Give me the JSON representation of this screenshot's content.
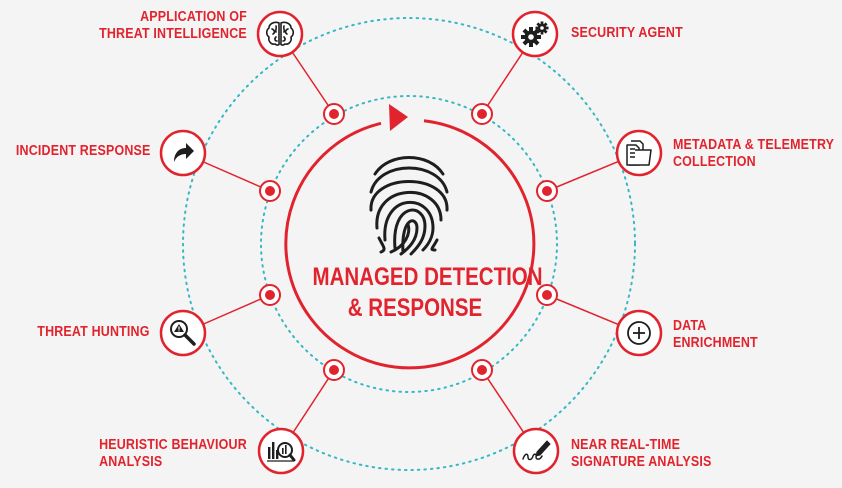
{
  "center": {
    "title_line1": "MANAGED DETECTION",
    "title_line2": "& RESPONSE"
  },
  "nodes": [
    {
      "id": "threat-intelligence",
      "line1": "APPLICATION OF",
      "line2": "THREAT INTELLIGENCE",
      "icon": "brain-icon"
    },
    {
      "id": "security-agent",
      "line1": "SECURITY AGENT",
      "line2": "",
      "icon": "gears-icon"
    },
    {
      "id": "incident-response",
      "line1": "INCIDENT RESPONSE",
      "line2": "",
      "icon": "forward-arrow-icon"
    },
    {
      "id": "metadata-telemetry",
      "line1": "METADATA & TELEMETRY",
      "line2": "COLLECTION",
      "icon": "documents-icon"
    },
    {
      "id": "threat-hunting",
      "line1": "THREAT HUNTING",
      "line2": "",
      "icon": "magnifier-warning-icon"
    },
    {
      "id": "data-enrichment",
      "line1": "DATA",
      "line2": "ENRICHMENT",
      "icon": "plus-circle-icon"
    },
    {
      "id": "heuristic-behaviour",
      "line1": "HEURISTIC BEHAVIOUR",
      "line2": "ANALYSIS",
      "icon": "chart-magnifier-icon"
    },
    {
      "id": "signature-analysis",
      "line1": "NEAR REAL-TIME",
      "line2": "SIGNATURE ANALYSIS",
      "icon": "pen-signature-icon"
    }
  ],
  "colors": {
    "accent": "#e1232d",
    "dotted_ring": "#35b8c4",
    "icon": "#1e1e1e",
    "background": "#f4f4f4"
  },
  "center_icon": "fingerprint-icon"
}
